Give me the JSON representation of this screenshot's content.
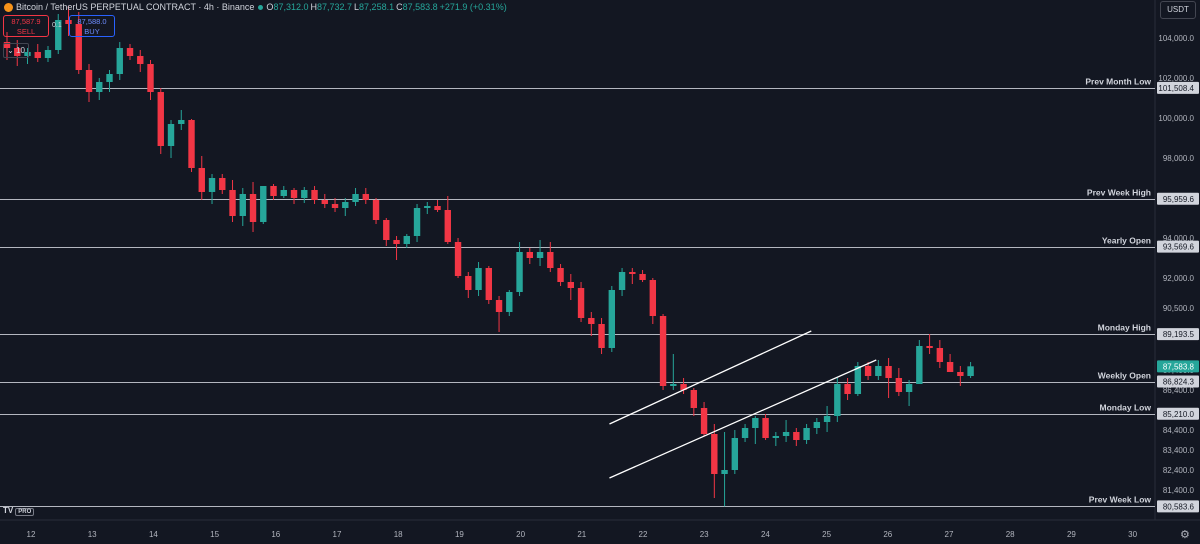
{
  "header": {
    "title": "Bitcoin / TetherUS PERPETUAL CONTRACT · 4h · Binance",
    "ohlc": [
      {
        "k": "O",
        "v": "87,312.0"
      },
      {
        "k": "H",
        "v": "87,732.7"
      },
      {
        "k": "L",
        "v": "87,258.1"
      },
      {
        "k": "C",
        "v": "87,583.8"
      }
    ],
    "change": "+271.9 (+0.31%)"
  },
  "trade": {
    "sell_price": "87,587.9",
    "sell_label": "SELL",
    "buy_price": "87,588.0",
    "buy_label": "BUY",
    "spread": "0.1"
  },
  "volume_toggle": "10",
  "currency": "USDT",
  "brand": {
    "logo": "TV",
    "badge": "PRO"
  },
  "colors": {
    "up": "#26a69a",
    "down": "#f23645",
    "bg": "#131722",
    "level": "#d1d4dc"
  },
  "chart_data": {
    "type": "candlestick",
    "symbol": "BTCUSDT.P",
    "interval": "4h",
    "ylim": [
      80300,
      105600
    ],
    "y_ticks": [
      81400,
      82400,
      83400,
      84400,
      86400,
      87400,
      90500,
      92000,
      94000,
      98000,
      100000,
      102000,
      104000
    ],
    "x_ticks": [
      "12",
      "13",
      "14",
      "15",
      "16",
      "17",
      "18",
      "19",
      "20",
      "21",
      "22",
      "23",
      "24",
      "25",
      "26",
      "27",
      "28",
      "29",
      "30"
    ],
    "levels": [
      {
        "name": "Prev Month Low",
        "value": 101508.4,
        "label": "101,508.4"
      },
      {
        "name": "Prev Week High",
        "value": 95959.6,
        "label": "95,959.6"
      },
      {
        "name": "Yearly Open",
        "value": 93569.6,
        "label": "93,569.6"
      },
      {
        "name": "Monday High",
        "value": 89193.5,
        "label": "89,193.5"
      },
      {
        "name": "Weekly Open",
        "value": 86824.3,
        "label": "86,824.3"
      },
      {
        "name": "Monday Low",
        "value": 85210.0,
        "label": "85,210.0"
      },
      {
        "name": "Prev Week Low",
        "value": 80583.6,
        "label": "80,583.6"
      }
    ],
    "last_price": {
      "value": 87583.8,
      "label": "87,583.8"
    },
    "channel": [
      {
        "start": [
          "21.55",
          84700
        ],
        "end": [
          "24.75",
          89350
        ]
      },
      {
        "start": [
          "21.55",
          82000
        ],
        "end": [
          "25.55",
          87900
        ]
      }
    ],
    "series": [
      {
        "o": 103800,
        "h": 104300,
        "l": 102900,
        "c": 103500
      },
      {
        "o": 103500,
        "h": 103900,
        "l": 102600,
        "c": 103100
      },
      {
        "o": 103100,
        "h": 103500,
        "l": 102700,
        "c": 103300
      },
      {
        "o": 103300,
        "h": 103700,
        "l": 102800,
        "c": 103000
      },
      {
        "o": 103000,
        "h": 103600,
        "l": 102800,
        "c": 103400
      },
      {
        "o": 103400,
        "h": 105200,
        "l": 103200,
        "c": 104900
      },
      {
        "o": 104900,
        "h": 105600,
        "l": 104100,
        "c": 104700
      },
      {
        "o": 104700,
        "h": 105300,
        "l": 102200,
        "c": 102400
      },
      {
        "o": 102400,
        "h": 102700,
        "l": 100800,
        "c": 101300
      },
      {
        "o": 101300,
        "h": 102000,
        "l": 100900,
        "c": 101800
      },
      {
        "o": 101800,
        "h": 102400,
        "l": 101300,
        "c": 102200
      },
      {
        "o": 102200,
        "h": 103800,
        "l": 101900,
        "c": 103500
      },
      {
        "o": 103500,
        "h": 103700,
        "l": 102900,
        "c": 103100
      },
      {
        "o": 103100,
        "h": 103400,
        "l": 102300,
        "c": 102700
      },
      {
        "o": 102700,
        "h": 102900,
        "l": 100900,
        "c": 101300
      },
      {
        "o": 101300,
        "h": 101500,
        "l": 98200,
        "c": 98600
      },
      {
        "o": 98600,
        "h": 99900,
        "l": 98000,
        "c": 99700
      },
      {
        "o": 99700,
        "h": 100400,
        "l": 99400,
        "c": 99900
      },
      {
        "o": 99900,
        "h": 99950,
        "l": 97300,
        "c": 97500
      },
      {
        "o": 97500,
        "h": 98100,
        "l": 95900,
        "c": 96300
      },
      {
        "o": 96300,
        "h": 97200,
        "l": 95700,
        "c": 97000
      },
      {
        "o": 97000,
        "h": 97200,
        "l": 96200,
        "c": 96400
      },
      {
        "o": 96400,
        "h": 96900,
        "l": 94800,
        "c": 95100
      },
      {
        "o": 95100,
        "h": 96500,
        "l": 94600,
        "c": 96200
      },
      {
        "o": 96200,
        "h": 96800,
        "l": 94300,
        "c": 94800
      },
      {
        "o": 94800,
        "h": 96600,
        "l": 94700,
        "c": 96600
      },
      {
        "o": 96600,
        "h": 96700,
        "l": 95900,
        "c": 96100
      },
      {
        "o": 96100,
        "h": 96600,
        "l": 96000,
        "c": 96400
      },
      {
        "o": 96400,
        "h": 96500,
        "l": 95700,
        "c": 96000
      },
      {
        "o": 96000,
        "h": 96550,
        "l": 95750,
        "c": 96400
      },
      {
        "o": 96400,
        "h": 96600,
        "l": 95700,
        "c": 95900
      },
      {
        "o": 95900,
        "h": 96200,
        "l": 95500,
        "c": 95700
      },
      {
        "o": 95700,
        "h": 96000,
        "l": 95300,
        "c": 95500
      },
      {
        "o": 95500,
        "h": 96000,
        "l": 95100,
        "c": 95800
      },
      {
        "o": 95800,
        "h": 96500,
        "l": 95600,
        "c": 96200
      },
      {
        "o": 96200,
        "h": 96500,
        "l": 95700,
        "c": 95900
      },
      {
        "o": 95900,
        "h": 96000,
        "l": 94700,
        "c": 94900
      },
      {
        "o": 94900,
        "h": 95000,
        "l": 93600,
        "c": 93900
      },
      {
        "o": 93900,
        "h": 94100,
        "l": 92900,
        "c": 93700
      },
      {
        "o": 93700,
        "h": 94200,
        "l": 93500,
        "c": 94100
      },
      {
        "o": 94100,
        "h": 95700,
        "l": 93800,
        "c": 95500
      },
      {
        "o": 95500,
        "h": 95800,
        "l": 95200,
        "c": 95600
      },
      {
        "o": 95600,
        "h": 95900,
        "l": 95300,
        "c": 95400
      },
      {
        "o": 95400,
        "h": 96100,
        "l": 93700,
        "c": 93800
      },
      {
        "o": 93800,
        "h": 94000,
        "l": 92000,
        "c": 92100
      },
      {
        "o": 92100,
        "h": 92300,
        "l": 91000,
        "c": 91400
      },
      {
        "o": 91400,
        "h": 92800,
        "l": 91100,
        "c": 92500
      },
      {
        "o": 92500,
        "h": 92600,
        "l": 90700,
        "c": 90900
      },
      {
        "o": 90900,
        "h": 91100,
        "l": 89300,
        "c": 90300
      },
      {
        "o": 90300,
        "h": 91400,
        "l": 90100,
        "c": 91300
      },
      {
        "o": 91300,
        "h": 93800,
        "l": 91100,
        "c": 93300
      },
      {
        "o": 93300,
        "h": 93500,
        "l": 92700,
        "c": 93000
      },
      {
        "o": 93000,
        "h": 93900,
        "l": 92600,
        "c": 93300
      },
      {
        "o": 93300,
        "h": 93800,
        "l": 92300,
        "c": 92500
      },
      {
        "o": 92500,
        "h": 92700,
        "l": 91600,
        "c": 91800
      },
      {
        "o": 91800,
        "h": 92200,
        "l": 90900,
        "c": 91500
      },
      {
        "o": 91500,
        "h": 91800,
        "l": 89800,
        "c": 90000
      },
      {
        "o": 90000,
        "h": 90300,
        "l": 89100,
        "c": 89700
      },
      {
        "o": 89700,
        "h": 90000,
        "l": 88200,
        "c": 88500
      },
      {
        "o": 88500,
        "h": 91600,
        "l": 88300,
        "c": 91400
      },
      {
        "o": 91400,
        "h": 92500,
        "l": 91100,
        "c": 92300
      },
      {
        "o": 92300,
        "h": 92500,
        "l": 91700,
        "c": 92200
      },
      {
        "o": 92200,
        "h": 92400,
        "l": 91800,
        "c": 91900
      },
      {
        "o": 91900,
        "h": 92000,
        "l": 89700,
        "c": 90100
      },
      {
        "o": 90100,
        "h": 90200,
        "l": 86400,
        "c": 86600
      },
      {
        "o": 86600,
        "h": 88200,
        "l": 86400,
        "c": 86700
      },
      {
        "o": 86700,
        "h": 87000,
        "l": 86200,
        "c": 86400
      },
      {
        "o": 86400,
        "h": 86500,
        "l": 85100,
        "c": 85500
      },
      {
        "o": 85500,
        "h": 85800,
        "l": 84100,
        "c": 84200
      },
      {
        "o": 84200,
        "h": 84700,
        "l": 81000,
        "c": 82200
      },
      {
        "o": 82200,
        "h": 84300,
        "l": 80583,
        "c": 82400
      },
      {
        "o": 82400,
        "h": 84400,
        "l": 82200,
        "c": 84000
      },
      {
        "o": 84000,
        "h": 84700,
        "l": 83800,
        "c": 84500
      },
      {
        "o": 84500,
        "h": 85100,
        "l": 83700,
        "c": 85000
      },
      {
        "o": 85000,
        "h": 85200,
        "l": 83900,
        "c": 84000
      },
      {
        "o": 84000,
        "h": 84300,
        "l": 83600,
        "c": 84100
      },
      {
        "o": 84100,
        "h": 84900,
        "l": 83800,
        "c": 84300
      },
      {
        "o": 84300,
        "h": 84500,
        "l": 83600,
        "c": 83900
      },
      {
        "o": 83900,
        "h": 84700,
        "l": 83700,
        "c": 84500
      },
      {
        "o": 84500,
        "h": 85000,
        "l": 84200,
        "c": 84800
      },
      {
        "o": 84800,
        "h": 85600,
        "l": 84300,
        "c": 85100
      },
      {
        "o": 85100,
        "h": 87000,
        "l": 84800,
        "c": 86700
      },
      {
        "o": 86700,
        "h": 87000,
        "l": 85900,
        "c": 86200
      },
      {
        "o": 86200,
        "h": 87800,
        "l": 86100,
        "c": 87600
      },
      {
        "o": 87600,
        "h": 87800,
        "l": 86900,
        "c": 87100
      },
      {
        "o": 87100,
        "h": 87900,
        "l": 86900,
        "c": 87600
      },
      {
        "o": 87600,
        "h": 88000,
        "l": 86000,
        "c": 87000
      },
      {
        "o": 87000,
        "h": 87500,
        "l": 86100,
        "c": 86300
      },
      {
        "o": 86300,
        "h": 86900,
        "l": 85600,
        "c": 86700
      },
      {
        "o": 86700,
        "h": 88900,
        "l": 86700,
        "c": 88600
      },
      {
        "o": 88600,
        "h": 89200,
        "l": 88200,
        "c": 88500
      },
      {
        "o": 88500,
        "h": 88900,
        "l": 87500,
        "c": 87800
      },
      {
        "o": 87800,
        "h": 88200,
        "l": 87400,
        "c": 87300
      },
      {
        "o": 87300,
        "h": 87600,
        "l": 86600,
        "c": 87100
      },
      {
        "o": 87100,
        "h": 87800,
        "l": 87000,
        "c": 87583.8
      }
    ]
  }
}
